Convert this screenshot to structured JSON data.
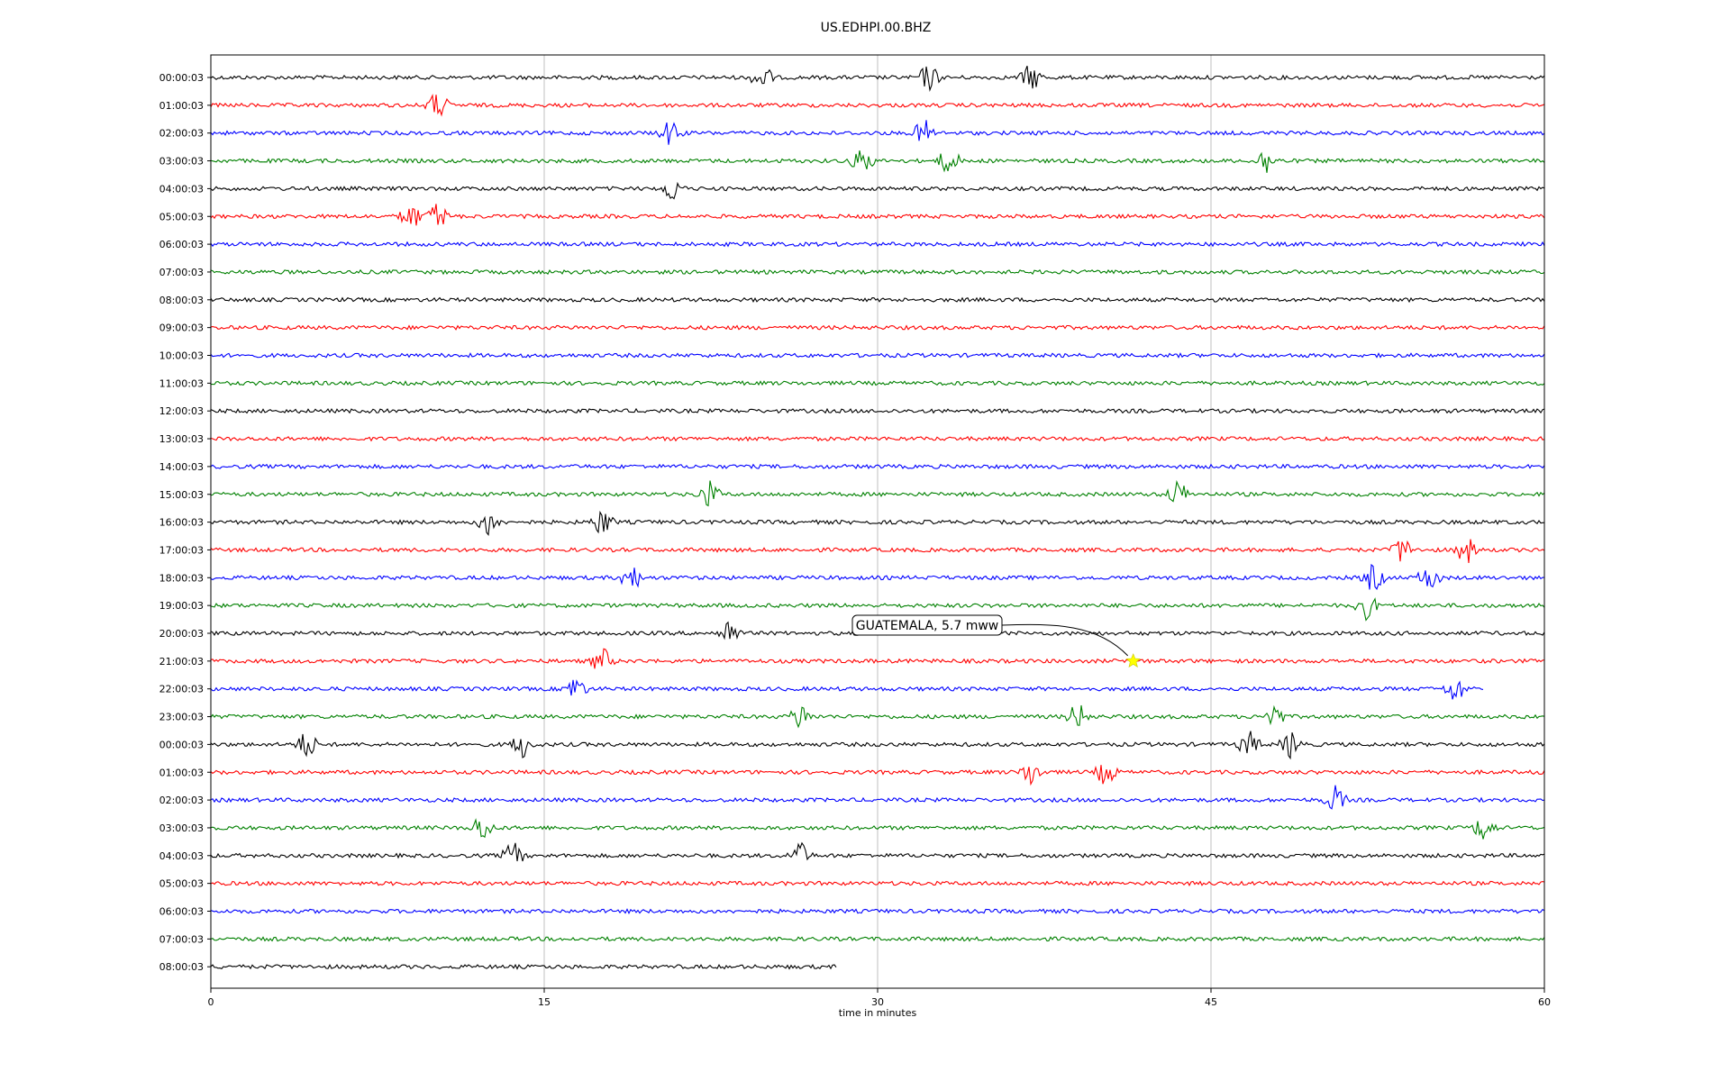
{
  "chart_data": {
    "type": "line",
    "title": "US.EDHPI.00.BHZ",
    "xlabel": "time in minutes",
    "ylabel": "",
    "xlim": [
      0,
      60
    ],
    "xticks": [
      "0",
      "15",
      "30",
      "45",
      "60"
    ],
    "grid": "vertical gridlines at 15, 30, 45",
    "colors": [
      "#000000",
      "#ff0000",
      "#0000ff",
      "#008000"
    ],
    "rows": [
      {
        "label": "00:00:03",
        "color": "#000000",
        "end": 60
      },
      {
        "label": "01:00:03",
        "color": "#ff0000",
        "end": 60
      },
      {
        "label": "02:00:03",
        "color": "#0000ff",
        "end": 60
      },
      {
        "label": "03:00:03",
        "color": "#008000",
        "end": 60
      },
      {
        "label": "04:00:03",
        "color": "#000000",
        "end": 60
      },
      {
        "label": "05:00:03",
        "color": "#ff0000",
        "end": 60
      },
      {
        "label": "06:00:03",
        "color": "#0000ff",
        "end": 60
      },
      {
        "label": "07:00:03",
        "color": "#008000",
        "end": 60
      },
      {
        "label": "08:00:03",
        "color": "#000000",
        "end": 60
      },
      {
        "label": "09:00:03",
        "color": "#ff0000",
        "end": 60
      },
      {
        "label": "10:00:03",
        "color": "#0000ff",
        "end": 60
      },
      {
        "label": "11:00:03",
        "color": "#008000",
        "end": 60
      },
      {
        "label": "12:00:03",
        "color": "#000000",
        "end": 60
      },
      {
        "label": "13:00:03",
        "color": "#ff0000",
        "end": 60
      },
      {
        "label": "14:00:03",
        "color": "#0000ff",
        "end": 60
      },
      {
        "label": "15:00:03",
        "color": "#008000",
        "end": 60
      },
      {
        "label": "16:00:03",
        "color": "#000000",
        "end": 60
      },
      {
        "label": "17:00:03",
        "color": "#ff0000",
        "end": 60
      },
      {
        "label": "18:00:03",
        "color": "#0000ff",
        "end": 60
      },
      {
        "label": "19:00:03",
        "color": "#008000",
        "end": 60
      },
      {
        "label": "20:00:03",
        "color": "#000000",
        "end": 60
      },
      {
        "label": "21:00:03",
        "color": "#ff0000",
        "end": 60
      },
      {
        "label": "22:00:03",
        "color": "#0000ff",
        "end": 57.3
      },
      {
        "label": "23:00:03",
        "color": "#008000",
        "end": 60
      },
      {
        "label": "00:00:03",
        "color": "#000000",
        "end": 60
      },
      {
        "label": "01:00:03",
        "color": "#ff0000",
        "end": 60
      },
      {
        "label": "02:00:03",
        "color": "#0000ff",
        "end": 60
      },
      {
        "label": "03:00:03",
        "color": "#008000",
        "end": 60
      },
      {
        "label": "04:00:03",
        "color": "#000000",
        "end": 60
      },
      {
        "label": "05:00:03",
        "color": "#ff0000",
        "end": 60
      },
      {
        "label": "06:00:03",
        "color": "#0000ff",
        "end": 60
      },
      {
        "label": "07:00:03",
        "color": "#008000",
        "end": 60
      },
      {
        "label": "08:00:03",
        "color": "#000000",
        "end": 28.2
      }
    ],
    "events": [
      {
        "row": 0,
        "t": 24.8
      },
      {
        "row": 0,
        "t": 32.3
      },
      {
        "row": 0,
        "t": 36.9
      },
      {
        "row": 1,
        "t": 10.2
      },
      {
        "row": 2,
        "t": 20.7
      },
      {
        "row": 2,
        "t": 32.1
      },
      {
        "row": 3,
        "t": 29.3
      },
      {
        "row": 3,
        "t": 33.2
      },
      {
        "row": 3,
        "t": 47.5
      },
      {
        "row": 4,
        "t": 20.8
      },
      {
        "row": 5,
        "t": 9.0
      },
      {
        "row": 5,
        "t": 10.2
      },
      {
        "row": 15,
        "t": 22.4
      },
      {
        "row": 15,
        "t": 43.5
      },
      {
        "row": 16,
        "t": 12.5
      },
      {
        "row": 16,
        "t": 17.6
      },
      {
        "row": 17,
        "t": 53.6
      },
      {
        "row": 17,
        "t": 56.5
      },
      {
        "row": 18,
        "t": 18.9
      },
      {
        "row": 18,
        "t": 52.3
      },
      {
        "row": 18,
        "t": 54.8
      },
      {
        "row": 19,
        "t": 52.0
      },
      {
        "row": 20,
        "t": 23.3
      },
      {
        "row": 21,
        "t": 17.6
      },
      {
        "row": 22,
        "t": 16.4
      },
      {
        "row": 22,
        "t": 56.0
      },
      {
        "row": 23,
        "t": 26.5
      },
      {
        "row": 23,
        "t": 39.0
      },
      {
        "row": 23,
        "t": 47.8
      },
      {
        "row": 24,
        "t": 4.3
      },
      {
        "row": 24,
        "t": 14.0
      },
      {
        "row": 24,
        "t": 46.7
      },
      {
        "row": 24,
        "t": 48.6
      },
      {
        "row": 25,
        "t": 36.9
      },
      {
        "row": 25,
        "t": 40.3
      },
      {
        "row": 26,
        "t": 50.6
      },
      {
        "row": 27,
        "t": 12.2
      },
      {
        "row": 27,
        "t": 57.3
      },
      {
        "row": 28,
        "t": 13.6
      },
      {
        "row": 28,
        "t": 26.5
      }
    ],
    "annotation": {
      "text": "GUATEMALA, 5.7 mww",
      "row": 21,
      "t": 41.5,
      "marker": "star",
      "marker_color": "#ffff00"
    }
  }
}
